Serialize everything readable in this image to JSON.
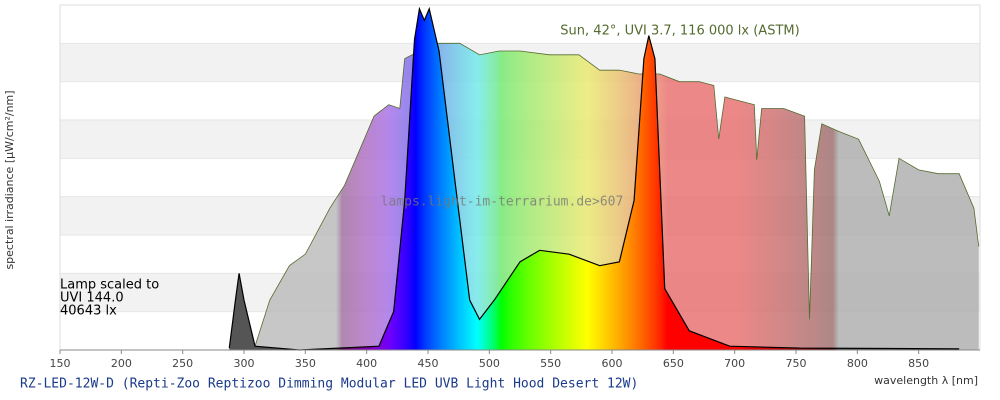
{
  "chart_data": {
    "type": "area",
    "title": "RZ-LED-12W-D (Repti-Zoo Reptizoo Dimming Modular LED UVB Light Hood Desert 12W)",
    "x_label": "wavelength λ [nm]",
    "y_label": "spectral irradiance [µW/cm²/nm]",
    "watermark": "lamps.light-im-terrarium.de>607",
    "xlim": [
      150,
      900
    ],
    "xticks": [
      150,
      200,
      250,
      300,
      350,
      400,
      450,
      500,
      550,
      600,
      650,
      700,
      750,
      800,
      850
    ],
    "ylim": [
      0,
      9
    ],
    "ygrid": [
      0,
      1,
      2,
      3,
      4,
      5,
      6,
      7,
      8,
      9
    ],
    "series": [
      {
        "name": "Sun, 42°, UVI 3.7, 116 000 lx (ASTM)",
        "color": "#556b2f",
        "x": [
          309,
          321,
          337,
          350,
          370,
          382,
          398,
          406,
          418,
          427,
          431,
          443,
          459,
          476,
          492,
          508,
          525,
          549,
          573,
          590,
          606,
          622,
          639,
          655,
          671,
          683,
          687,
          692,
          704,
          716,
          718,
          722,
          740,
          757,
          761,
          765,
          771,
          785,
          801,
          818,
          826,
          834,
          850,
          866,
          883,
          895,
          899
        ],
        "values": [
          0.1,
          1.3,
          2.2,
          2.5,
          3.7,
          4.3,
          5.5,
          6.1,
          6.4,
          6.3,
          7.6,
          7.8,
          8.0,
          8.0,
          7.7,
          7.8,
          7.8,
          7.7,
          7.7,
          7.3,
          7.3,
          7.2,
          7.2,
          7.0,
          7.0,
          6.9,
          5.5,
          6.6,
          6.5,
          6.4,
          4.96,
          6.3,
          6.3,
          6.1,
          0.8,
          4.7,
          5.9,
          5.7,
          5.5,
          4.4,
          3.5,
          5.0,
          4.7,
          4.6,
          4.6,
          3.7,
          2.7
        ]
      },
      {
        "label": [
          "Lamp scaled to",
          "UVI 144.0",
          "40643 lx"
        ],
        "color": "#000000",
        "x": [
          288,
          293,
          296,
          300,
          309,
          345,
          410,
          422,
          431,
          439,
          443,
          447,
          451,
          459,
          472,
          484,
          492,
          504,
          525,
          541,
          565,
          590,
          606,
          618,
          626,
          630,
          635,
          643,
          663,
          696,
          753,
          883
        ],
        "values": [
          0.05,
          1.3,
          2.0,
          1.3,
          0.1,
          0,
          0.1,
          1.0,
          3.9,
          8.1,
          8.9,
          8.6,
          8.9,
          7.8,
          4.4,
          1.3,
          0.8,
          1.3,
          2.3,
          2.6,
          2.5,
          2.2,
          2.3,
          3.9,
          7.6,
          8.2,
          7.6,
          1.6,
          0.5,
          0.1,
          0.05,
          0.03
        ]
      }
    ]
  }
}
